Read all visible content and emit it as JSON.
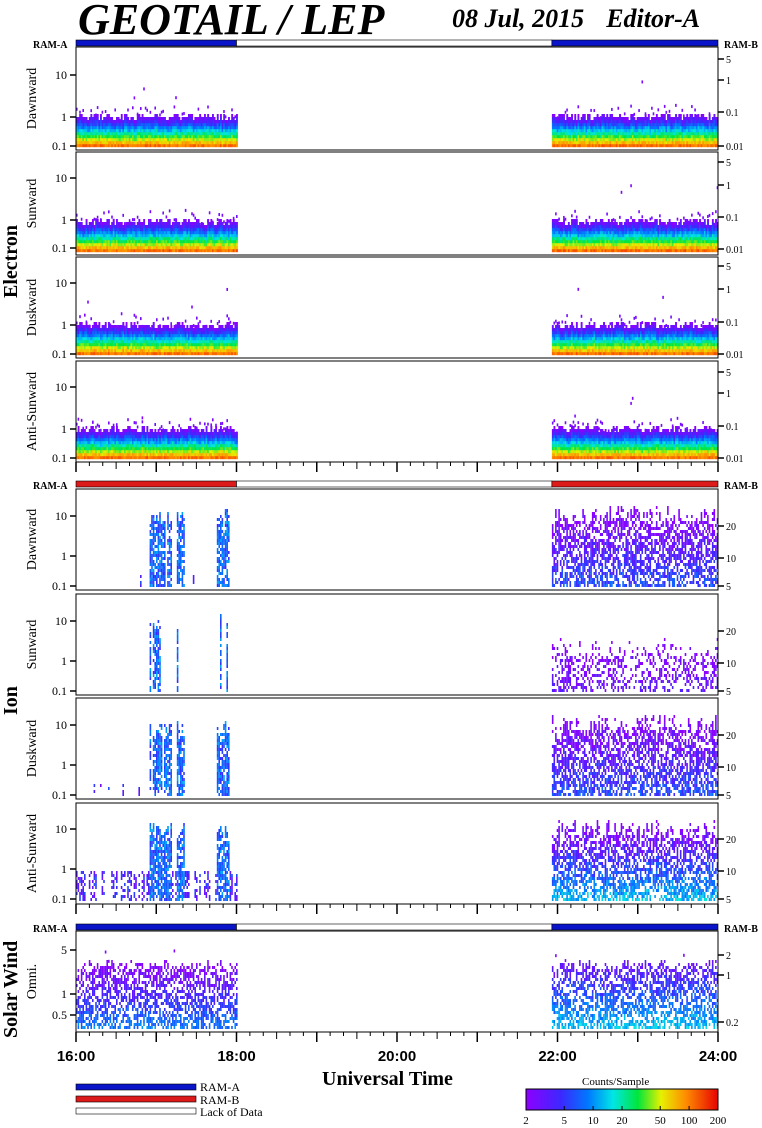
{
  "header": {
    "title": "GEOTAIL / LEP",
    "date": "08 Jul, 2015",
    "editor": "Editor-A"
  },
  "x_axis": {
    "title": "Universal Time",
    "ticks": [
      "16:00",
      "18:00",
      "20:00",
      "22:00",
      "24:00"
    ]
  },
  "groups": {
    "electron": "Electron",
    "ion": "Ion",
    "solar_wind": "Solar Wind"
  },
  "ram_labels": {
    "left": "RAM-A",
    "right": "RAM-B"
  },
  "legend": {
    "ram_a": "RAM-A",
    "ram_b": "RAM-B",
    "lack": "Lack of Data"
  },
  "colorbar": {
    "title": "Counts/Sample",
    "ticks": [
      "2",
      "5",
      "10",
      "20",
      "50",
      "100",
      "200"
    ]
  },
  "colors": {
    "ram_a": "#0a14c8",
    "ram_b": "#dc1a1a"
  },
  "chart_data": {
    "type": "heatmap",
    "x_range_hours": [
      16,
      24
    ],
    "data_intervals_hours": [
      [
        16.0,
        18.0
      ],
      [
        21.93,
        24.0
      ]
    ],
    "ram_bars": [
      {
        "panel_group": "electron",
        "segments": [
          {
            "from": 16.0,
            "to": 18.0,
            "mode": "RAM-A"
          },
          {
            "from": 18.0,
            "to": 21.93,
            "mode": "none"
          },
          {
            "from": 21.93,
            "to": 24.0,
            "mode": "RAM-A"
          }
        ]
      },
      {
        "panel_group": "ion",
        "segments": [
          {
            "from": 16.0,
            "to": 18.0,
            "mode": "RAM-B"
          },
          {
            "from": 18.0,
            "to": 21.93,
            "mode": "none"
          },
          {
            "from": 21.93,
            "to": 24.0,
            "mode": "RAM-B"
          }
        ]
      },
      {
        "panel_group": "solar_wind",
        "segments": [
          {
            "from": 16.0,
            "to": 18.0,
            "mode": "RAM-A"
          },
          {
            "from": 18.0,
            "to": 21.93,
            "mode": "none"
          },
          {
            "from": 21.93,
            "to": 24.0,
            "mode": "RAM-A"
          }
        ]
      }
    ],
    "panels": [
      {
        "group": "electron",
        "label": "Dawnward",
        "left_ticks": [
          "0.1",
          "1",
          "10"
        ],
        "right_ticks": [
          "0.01",
          "0.1",
          "1",
          "5"
        ],
        "kind": "electron"
      },
      {
        "group": "electron",
        "label": "Sunward",
        "left_ticks": [
          "0.1",
          "1",
          "10"
        ],
        "right_ticks": [
          "0.01",
          "0.1",
          "1",
          "5"
        ],
        "kind": "electron"
      },
      {
        "group": "electron",
        "label": "Duskward",
        "left_ticks": [
          "0.1",
          "1",
          "10"
        ],
        "right_ticks": [
          "0.01",
          "0.1",
          "1",
          "5"
        ],
        "kind": "electron"
      },
      {
        "group": "electron",
        "label": "Anti-Sunward",
        "left_ticks": [
          "0.1",
          "1",
          "10"
        ],
        "right_ticks": [
          "0.01",
          "0.1",
          "1",
          "5"
        ],
        "kind": "electron"
      },
      {
        "group": "ion",
        "label": "Dawnward",
        "left_ticks": [
          "0.1",
          "1",
          "10"
        ],
        "right_ticks": [
          "5",
          "10",
          "20"
        ],
        "kind": "ion"
      },
      {
        "group": "ion",
        "label": "Sunward",
        "left_ticks": [
          "0.1",
          "1",
          "10"
        ],
        "right_ticks": [
          "5",
          "10",
          "20"
        ],
        "kind": "ion-weak"
      },
      {
        "group": "ion",
        "label": "Duskward",
        "left_ticks": [
          "0.1",
          "1",
          "10"
        ],
        "right_ticks": [
          "5",
          "10",
          "20"
        ],
        "kind": "ion"
      },
      {
        "group": "ion",
        "label": "Anti-Sunward",
        "left_ticks": [
          "0.1",
          "1",
          "10"
        ],
        "right_ticks": [
          "5",
          "10",
          "20"
        ],
        "kind": "ion-strong"
      },
      {
        "group": "solar_wind",
        "label": "Omni.",
        "left_ticks": [
          "0.5",
          "1",
          "5"
        ],
        "right_ticks": [
          "0.2",
          "1",
          "2"
        ],
        "kind": "sw"
      }
    ]
  }
}
